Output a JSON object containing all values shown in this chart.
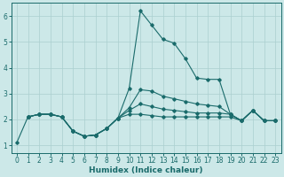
{
  "xlabel": "Humidex (Indice chaleur)",
  "bg_color": "#cce8e8",
  "grid_color": "#aacfcf",
  "line_color": "#1a6b6b",
  "xlim": [
    -0.5,
    23.5
  ],
  "ylim": [
    0.7,
    6.5
  ],
  "yticks": [
    1,
    2,
    3,
    4,
    5,
    6
  ],
  "xticks": [
    0,
    1,
    2,
    3,
    4,
    5,
    6,
    7,
    8,
    9,
    10,
    11,
    12,
    13,
    14,
    15,
    16,
    17,
    18,
    19,
    20,
    21,
    22,
    23
  ],
  "lines": [
    {
      "x": [
        0,
        1,
        2,
        3,
        4,
        5,
        6,
        7,
        8,
        9,
        10,
        11,
        12,
        13,
        14,
        15,
        16,
        17,
        18,
        19,
        20,
        21,
        22,
        23
      ],
      "y": [
        1.1,
        2.1,
        2.2,
        2.2,
        2.1,
        1.55,
        1.35,
        1.4,
        1.65,
        2.05,
        3.2,
        6.2,
        5.65,
        5.1,
        4.95,
        4.35,
        3.6,
        3.55,
        3.55,
        2.2,
        1.95,
        2.35,
        1.95,
        1.95
      ]
    },
    {
      "x": [
        1,
        2,
        3,
        4,
        5,
        6,
        7,
        8,
        9,
        10,
        11,
        12,
        13,
        14,
        15,
        16,
        17,
        18,
        19,
        20,
        21,
        22,
        23
      ],
      "y": [
        2.1,
        2.2,
        2.2,
        2.1,
        1.55,
        1.35,
        1.4,
        1.65,
        2.05,
        2.45,
        3.15,
        3.1,
        2.9,
        2.8,
        2.7,
        2.6,
        2.55,
        2.5,
        2.2,
        1.95,
        2.35,
        1.95,
        1.95
      ]
    },
    {
      "x": [
        1,
        2,
        3,
        4,
        5,
        6,
        7,
        8,
        9,
        10,
        11,
        12,
        13,
        14,
        15,
        16,
        17,
        18,
        19,
        20,
        21,
        22,
        23
      ],
      "y": [
        2.1,
        2.2,
        2.2,
        2.1,
        1.55,
        1.35,
        1.4,
        1.65,
        2.05,
        2.35,
        2.6,
        2.5,
        2.4,
        2.35,
        2.3,
        2.25,
        2.25,
        2.25,
        2.2,
        1.95,
        2.35,
        1.95,
        1.95
      ]
    },
    {
      "x": [
        1,
        2,
        3,
        4,
        5,
        6,
        7,
        8,
        9,
        10,
        11,
        12,
        13,
        14,
        15,
        16,
        17,
        18,
        19,
        20,
        21,
        22,
        23
      ],
      "y": [
        2.1,
        2.2,
        2.2,
        2.1,
        1.55,
        1.35,
        1.4,
        1.65,
        2.05,
        2.2,
        2.2,
        2.15,
        2.1,
        2.1,
        2.1,
        2.1,
        2.1,
        2.1,
        2.1,
        1.95,
        2.35,
        1.95,
        1.95
      ]
    }
  ]
}
